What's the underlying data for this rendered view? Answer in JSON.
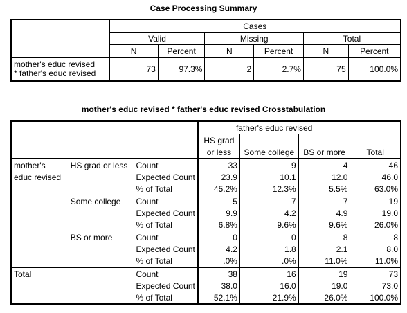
{
  "summary": {
    "title": "Case Processing Summary",
    "header_cases": "Cases",
    "groups": [
      "Valid",
      "Missing",
      "Total"
    ],
    "subheaders": [
      "N",
      "Percent",
      "N",
      "Percent",
      "N",
      "Percent"
    ],
    "row_label_1": "mother's educ revised",
    "row_label_2": "* father's educ revised",
    "values": [
      "73",
      "97.3%",
      "2",
      "2.7%",
      "75",
      "100.0%"
    ]
  },
  "crosstab": {
    "title": "mother's educ revised * father's educ revised Crosstabulation",
    "col_var": "father's educ revised",
    "col_headers": [
      "HS grad",
      "or less",
      "Some college",
      "BS or more",
      "Total"
    ],
    "row_var_1": "mother's",
    "row_var_2": "educ revised",
    "groups": [
      {
        "label": "HS grad or less",
        "rows": [
          {
            "stat": "Count",
            "v": [
              "33",
              "9",
              "4",
              "46"
            ]
          },
          {
            "stat": "Expected Count",
            "v": [
              "23.9",
              "10.1",
              "12.0",
              "46.0"
            ]
          },
          {
            "stat": "% of Total",
            "v": [
              "45.2%",
              "12.3%",
              "5.5%",
              "63.0%"
            ]
          }
        ]
      },
      {
        "label": "Some college",
        "rows": [
          {
            "stat": "Count",
            "v": [
              "5",
              "7",
              "7",
              "19"
            ]
          },
          {
            "stat": "Expected Count",
            "v": [
              "9.9",
              "4.2",
              "4.9",
              "19.0"
            ]
          },
          {
            "stat": "% of Total",
            "v": [
              "6.8%",
              "9.6%",
              "9.6%",
              "26.0%"
            ]
          }
        ]
      },
      {
        "label": "BS or more",
        "rows": [
          {
            "stat": "Count",
            "v": [
              "0",
              "0",
              "8",
              "8"
            ]
          },
          {
            "stat": "Expected Count",
            "v": [
              "4.2",
              "1.8",
              "2.1",
              "8.0"
            ]
          },
          {
            "stat": "% of Total",
            "v": [
              ".0%",
              ".0%",
              "11.0%",
              "11.0%"
            ]
          }
        ]
      }
    ],
    "total": {
      "label": "Total",
      "rows": [
        {
          "stat": "Count",
          "v": [
            "38",
            "16",
            "19",
            "73"
          ]
        },
        {
          "stat": "Expected Count",
          "v": [
            "38.0",
            "16.0",
            "19.0",
            "73.0"
          ]
        },
        {
          "stat": "% of Total",
          "v": [
            "52.1%",
            "21.9%",
            "26.0%",
            "100.0%"
          ]
        }
      ]
    }
  }
}
